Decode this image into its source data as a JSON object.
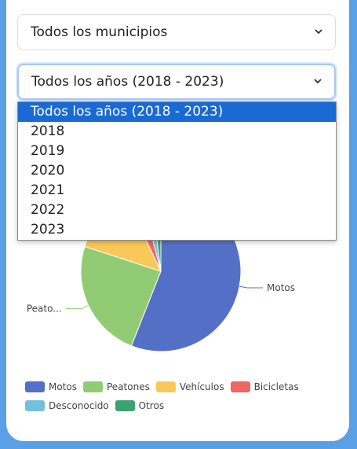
{
  "filters": {
    "municipality_label": "Todos los municipios",
    "year_label": "Todos los años (2018 - 2023)"
  },
  "year_options": [
    "Todos los años (2018 - 2023)",
    "2018",
    "2019",
    "2020",
    "2021",
    "2022",
    "2023"
  ],
  "chart_data": {
    "type": "pie",
    "categories": [
      "Motos",
      "Peatones",
      "Vehículos",
      "Bicicletas",
      "Desconocido",
      "Otros"
    ],
    "values": [
      56,
      24,
      13,
      3,
      2,
      2
    ],
    "callouts": [
      "Motos",
      "Peato..."
    ],
    "legend_position": "bottom",
    "colors": [
      "#5470c6",
      "#91cc75",
      "#fac858",
      "#ee6666",
      "#73c0de",
      "#3ba272"
    ]
  }
}
